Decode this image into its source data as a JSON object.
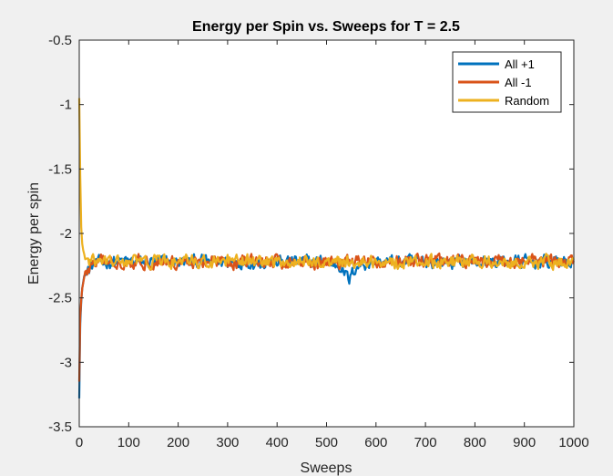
{
  "chart_data": {
    "type": "line",
    "title": "Energy per Spin vs. Sweeps for T = 2.5",
    "xlabel": "Sweeps",
    "ylabel": "Energy per spin",
    "xlim": [
      0,
      1000
    ],
    "ylim": [
      -3.5,
      -0.5
    ],
    "xticks": [
      0,
      100,
      200,
      300,
      400,
      500,
      600,
      700,
      800,
      900,
      1000
    ],
    "xtick_labels": [
      "0",
      "100",
      "200",
      "300",
      "400",
      "500",
      "600",
      "700",
      "800",
      "900",
      "1000"
    ],
    "yticks": [
      -0.5,
      -1,
      -1.5,
      -2,
      -2.5,
      -3,
      -3.5
    ],
    "ytick_labels": [
      "-0.5",
      "-1",
      "-1.5",
      "-2",
      "-2.5",
      "-3",
      "-3.5"
    ],
    "grid": false,
    "legend_position": "top-right",
    "series": [
      {
        "name": "All +1",
        "color": "#0072BD",
        "x": [
          0,
          2,
          5,
          10,
          15,
          20,
          30,
          40,
          60,
          80,
          100,
          150,
          200,
          250,
          300,
          350,
          400,
          450,
          500,
          530,
          545,
          560,
          600,
          650,
          700,
          750,
          800,
          850,
          900,
          950,
          1000
        ],
        "y": [
          -3.28,
          -2.7,
          -2.45,
          -2.33,
          -2.3,
          -2.28,
          -2.24,
          -2.23,
          -2.22,
          -2.22,
          -2.22,
          -2.22,
          -2.22,
          -2.22,
          -2.22,
          -2.22,
          -2.22,
          -2.22,
          -2.22,
          -2.25,
          -2.37,
          -2.25,
          -2.22,
          -2.22,
          -2.22,
          -2.22,
          -2.22,
          -2.22,
          -2.22,
          -2.22,
          -2.22
        ],
        "noise": 0.045
      },
      {
        "name": "All -1",
        "color": "#D95319",
        "x": [
          0,
          2,
          5,
          10,
          15,
          20,
          30,
          40,
          60,
          80,
          100,
          150,
          200,
          250,
          300,
          350,
          400,
          450,
          500,
          550,
          600,
          650,
          700,
          750,
          800,
          850,
          900,
          950,
          1000
        ],
        "y": [
          -3.15,
          -2.65,
          -2.45,
          -2.34,
          -2.3,
          -2.27,
          -2.24,
          -2.22,
          -2.22,
          -2.22,
          -2.22,
          -2.22,
          -2.22,
          -2.22,
          -2.22,
          -2.22,
          -2.22,
          -2.22,
          -2.22,
          -2.22,
          -2.22,
          -2.22,
          -2.22,
          -2.22,
          -2.22,
          -2.22,
          -2.22,
          -2.22,
          -2.22
        ],
        "noise": 0.045
      },
      {
        "name": "Random",
        "color": "#EDB120",
        "x": [
          0,
          1,
          2,
          4,
          6,
          8,
          10,
          15,
          20,
          30,
          40,
          60,
          80,
          100,
          150,
          200,
          250,
          300,
          350,
          400,
          450,
          500,
          550,
          600,
          650,
          700,
          750,
          800,
          850,
          900,
          950,
          1000
        ],
        "y": [
          -0.95,
          -1.1,
          -1.55,
          -1.95,
          -2.08,
          -2.13,
          -2.16,
          -2.2,
          -2.22,
          -2.22,
          -2.22,
          -2.22,
          -2.22,
          -2.22,
          -2.22,
          -2.22,
          -2.22,
          -2.22,
          -2.22,
          -2.22,
          -2.22,
          -2.22,
          -2.22,
          -2.22,
          -2.22,
          -2.22,
          -2.22,
          -2.22,
          -2.22,
          -2.22,
          -2.22,
          -2.22
        ],
        "noise": 0.045
      }
    ]
  }
}
